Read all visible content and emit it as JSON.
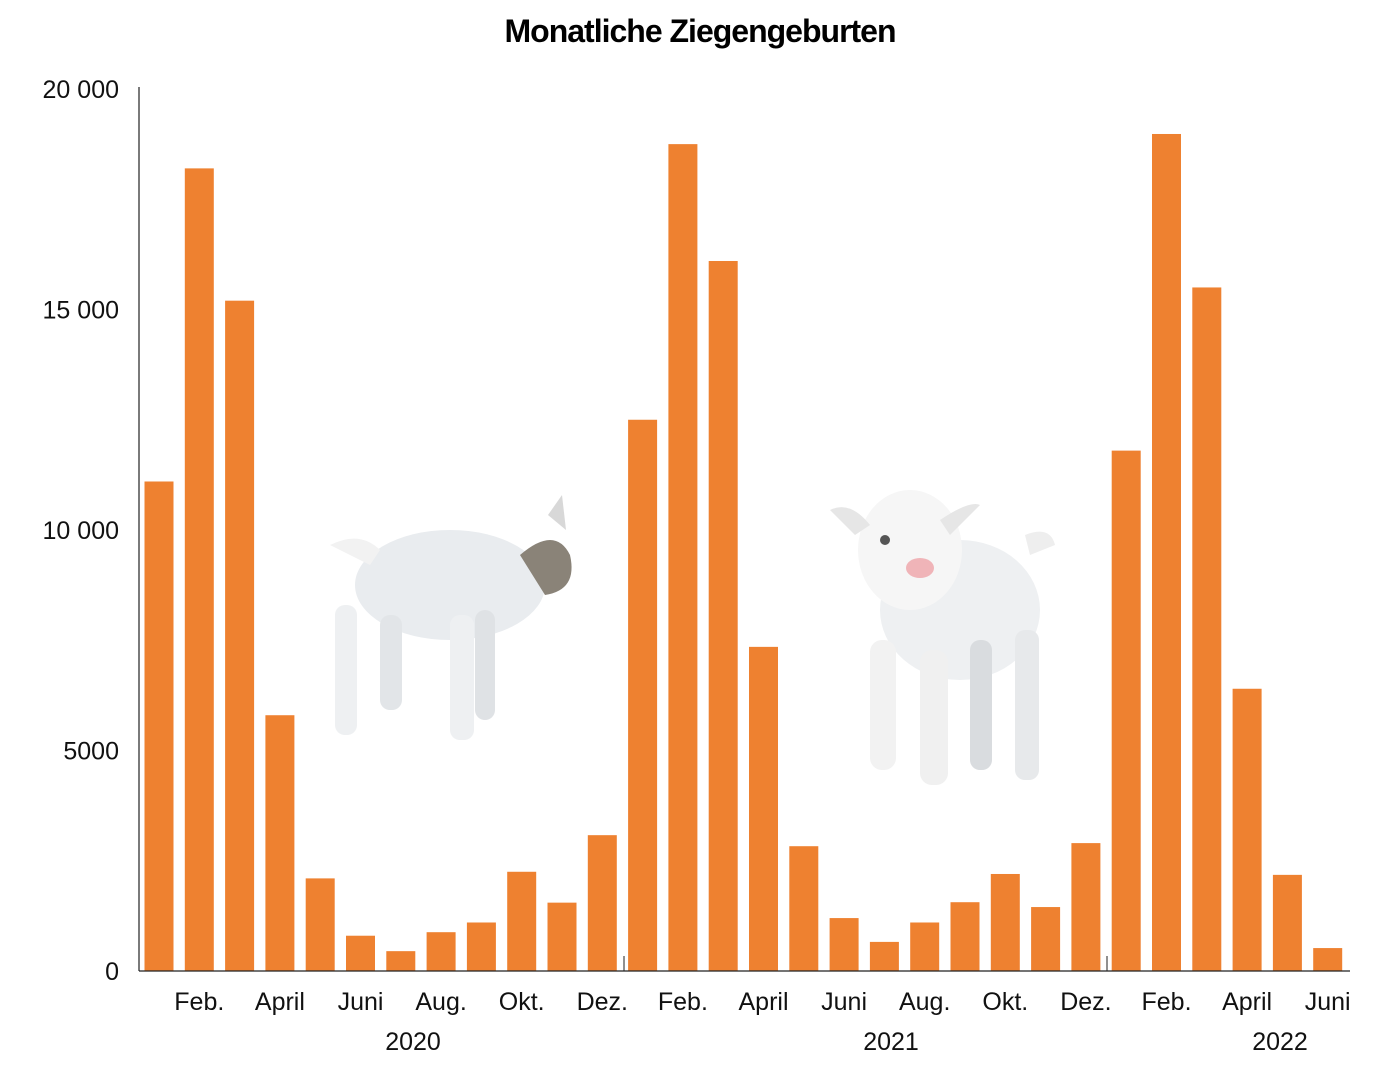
{
  "chart_data": {
    "type": "bar",
    "title": "Monatliche Ziegengeburten",
    "xlabel": "",
    "ylabel": "",
    "ylim": [
      0,
      20000
    ],
    "yticks": [
      0,
      5000,
      10000,
      15000,
      20000
    ],
    "ytick_labels": [
      "0",
      "5000",
      "10 000",
      "15 000",
      "20 000"
    ],
    "grid": false,
    "color": "#EE8130",
    "x_tick_labels": [
      "Feb.",
      "April",
      "Juni",
      "Aug.",
      "Okt.",
      "Dez.",
      "Feb.",
      "April",
      "Juni",
      "Aug.",
      "Okt.",
      "Dez.",
      "Feb.",
      "April",
      "Juni"
    ],
    "years": [
      "2020",
      "2021",
      "2022"
    ],
    "categories": [
      "Jan 2020",
      "Feb 2020",
      "Mar 2020",
      "Apr 2020",
      "May 2020",
      "Jun 2020",
      "Jul 2020",
      "Aug 2020",
      "Sep 2020",
      "Oct 2020",
      "Nov 2020",
      "Dec 2020",
      "Jan 2021",
      "Feb 2021",
      "Mar 2021",
      "Apr 2021",
      "May 2021",
      "Jun 2021",
      "Jul 2021",
      "Aug 2021",
      "Sep 2021",
      "Oct 2021",
      "Nov 2021",
      "Dec 2021",
      "Jan 2022",
      "Feb 2022",
      "Mar 2022",
      "Apr 2022",
      "May 2022",
      "Jun 2022"
    ],
    "values": [
      11100,
      18200,
      15200,
      5800,
      2100,
      800,
      450,
      880,
      1100,
      2250,
      1550,
      3080,
      12500,
      18750,
      16100,
      7350,
      2830,
      1200,
      660,
      1100,
      1560,
      2200,
      1450,
      2900,
      11800,
      18980,
      15500,
      6400,
      2180,
      520
    ]
  }
}
